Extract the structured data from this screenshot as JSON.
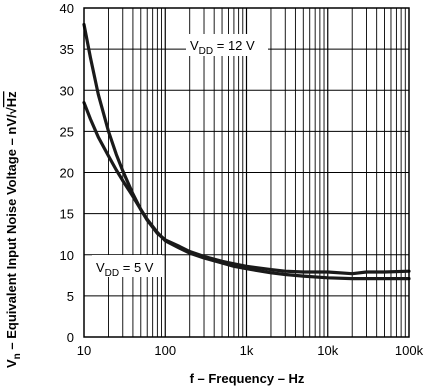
{
  "chart_data": {
    "type": "line",
    "xscale": "log",
    "xlim": [
      10,
      100000
    ],
    "ylim": [
      0,
      40
    ],
    "grid": true,
    "x_tick_labels": [
      "10",
      "100",
      "1k",
      "10k",
      "100k"
    ],
    "x_tick_values": [
      10,
      100,
      1000,
      10000,
      100000
    ],
    "y_tick_labels": [
      "0",
      "5",
      "10",
      "15",
      "20",
      "25",
      "30",
      "35",
      "40"
    ],
    "y_tick_values": [
      0,
      5,
      10,
      15,
      20,
      25,
      30,
      35,
      40
    ],
    "xlabel": "f – Frequency – Hz",
    "ylabel": {
      "sym": "V",
      "sub": "n",
      "text": " – Equivalent Input Noise Voltage – nV/",
      "sqrt": "Hz"
    },
    "series": [
      {
        "name_parts": {
          "pre": "V",
          "sub": "DD",
          "post": " = 12 V"
        },
        "x": [
          10,
          12,
          15,
          20,
          25,
          30,
          40,
          50,
          60,
          80,
          100,
          150,
          200,
          300,
          500,
          700,
          1000,
          2000,
          3000,
          5000,
          10000,
          20000,
          30000,
          50000,
          100000
        ],
        "y": [
          38.0,
          34.0,
          29.5,
          25.0,
          22.2,
          20.2,
          17.4,
          15.5,
          14.2,
          12.6,
          11.8,
          11.0,
          10.4,
          9.8,
          9.2,
          8.9,
          8.6,
          8.2,
          8.0,
          7.9,
          7.9,
          7.7,
          7.9,
          7.9,
          8.0
        ]
      },
      {
        "name_parts": {
          "pre": "V",
          "sub": "DD",
          "post": " = 5 V"
        },
        "x": [
          10,
          12,
          15,
          20,
          25,
          30,
          40,
          50,
          60,
          80,
          100,
          150,
          200,
          300,
          500,
          700,
          1000,
          2000,
          3000,
          5000,
          10000,
          20000,
          30000,
          50000,
          100000
        ],
        "y": [
          28.5,
          26.5,
          24.3,
          22.0,
          20.3,
          19.0,
          17.1,
          15.5,
          14.3,
          12.7,
          11.7,
          10.8,
          10.2,
          9.6,
          9.0,
          8.6,
          8.3,
          7.8,
          7.6,
          7.4,
          7.2,
          7.1,
          7.1,
          7.1,
          7.1
        ]
      }
    ],
    "annotations": [
      {
        "target": "series-12v",
        "pre": "V",
        "sub": "DD",
        "post": " = 12 V"
      },
      {
        "target": "series-5v",
        "pre": "V",
        "sub": "DD",
        "post": " = 5 V"
      }
    ]
  }
}
